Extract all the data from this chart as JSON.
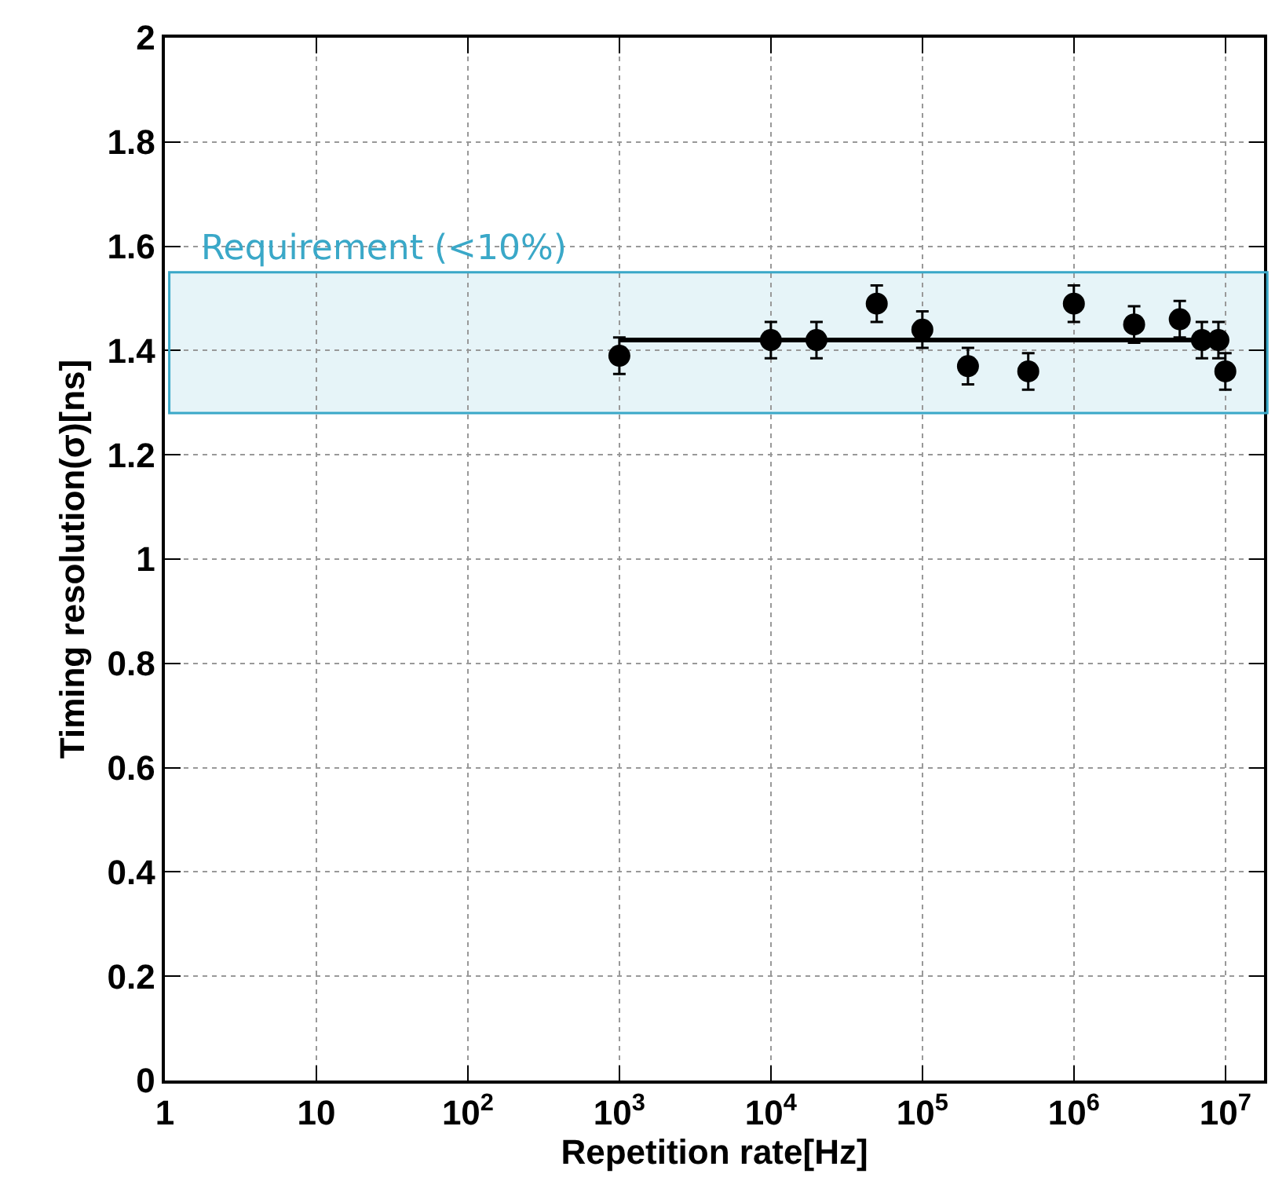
{
  "chart_data": {
    "type": "scatter",
    "xlabel": "Repetition rate[Hz]",
    "ylabel": "Timing resolution(σ)[ns]",
    "log": "x",
    "xlim": [
      1,
      18000000
    ],
    "xticks": [
      1,
      10,
      {
        "value": 100,
        "label": "10$^{2}$"
      },
      {
        "value": 1000,
        "label": "10$^{3}$"
      },
      {
        "value": 10000,
        "label": "10$^{4}$"
      },
      {
        "value": 100000,
        "label": "10$^{5}$"
      },
      {
        "value": 1000000,
        "label": "10$^{6}$"
      },
      {
        "value": 10000000,
        "label": "10$^{7}$"
      }
    ],
    "ylim": [
      0,
      2
    ],
    "yticks": [
      0,
      0.2,
      0.4,
      0.6,
      0.8,
      1,
      1.2,
      1.4,
      1.6,
      1.8,
      2
    ],
    "grid": true,
    "marker": "circle",
    "legend": false,
    "series": [
      {
        "color": "#000000",
        "x": [
          1000,
          10000,
          20000,
          50000,
          100000,
          200000,
          500000,
          1000000,
          2500000,
          5000000,
          7000000,
          9000000,
          10000000
        ],
        "values": [
          1.39,
          1.42,
          1.42,
          1.49,
          1.44,
          1.37,
          1.36,
          1.49,
          1.45,
          1.46,
          1.42,
          1.42,
          1.36
        ],
        "errors": [
          0.035,
          0.035,
          0.035,
          0.035,
          0.035,
          0.035,
          0.035,
          0.035,
          0.035,
          0.035,
          0.035,
          0.035,
          0.035
        ]
      },
      {
        "type": "line",
        "color": "#000000",
        "x": [
          1000,
          7000000
        ],
        "values": [
          1.42,
          1.42
        ],
        "marker": "none"
      }
    ],
    "bands": [
      {
        "axis": "y",
        "from": 1.28,
        "to": 1.55,
        "label": "Requirement (<10%)",
        "color": "#3aa8c8"
      }
    ]
  }
}
